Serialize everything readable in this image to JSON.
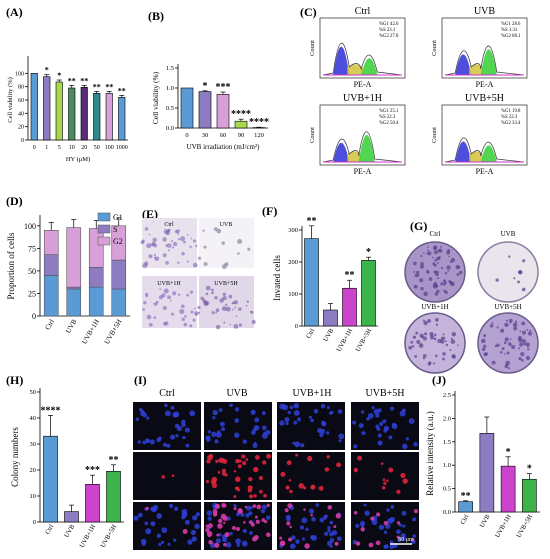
{
  "panel_labels": [
    "(A)",
    "(B)",
    "(C)",
    "(D)",
    "(E)",
    "(F)",
    "(G)",
    "(H)",
    "(I)",
    "(J)"
  ],
  "colors": {
    "blue": "#5b9bd5",
    "purple": "#8e7cc3",
    "lime": "#a8d84e",
    "green_dark": "#4e8a5f",
    "teal": "#2e8b8b",
    "pink": "#d8a0d8",
    "magenta": "#cc44cc",
    "red": "#e53935",
    "green": "#3cb44b",
    "dark_purple": "#5a2d7a",
    "stain": "#8a6db8"
  },
  "chart_data": [
    {
      "panel": "A",
      "type": "bar",
      "categories": [
        "0",
        "1",
        "5",
        "10",
        "20",
        "50",
        "100",
        "1000"
      ],
      "values": [
        100,
        95,
        87,
        78,
        79,
        70,
        70,
        64
      ],
      "errors": [
        0,
        3,
        3,
        4,
        3,
        3,
        3,
        3
      ],
      "significance": [
        "",
        "*",
        "*",
        "**",
        "**",
        "**",
        "**",
        "**"
      ],
      "xlabel": "HY (μM)",
      "ylabel": "Cell viability (%)",
      "yticks": [
        0,
        20,
        40,
        60,
        80,
        100
      ],
      "ylim": [
        0,
        120
      ]
    },
    {
      "panel": "B",
      "type": "bar",
      "categories": [
        "0",
        "30",
        "60",
        "90",
        "120"
      ],
      "values": [
        1.0,
        0.91,
        0.84,
        0.17,
        0.01
      ],
      "errors": [
        0,
        0.02,
        0.06,
        0.05,
        0.01
      ],
      "significance": [
        "",
        "*",
        "***",
        "****",
        "****"
      ],
      "xlabel": "UVB irradiation (mJ/cm²)",
      "ylabel": "Cell viability (%)",
      "yticks": [
        0.0,
        0.5,
        1.0,
        1.5
      ],
      "ylim": [
        0,
        1.5
      ]
    },
    {
      "panel": "C",
      "type": "histogram",
      "xlabel": "PE-A",
      "ylabel": "Count",
      "plots": [
        {
          "title": "Ctrl",
          "stats": [
            "%G1 42.6",
            "%S 23.1",
            "%G2 27.8"
          ]
        },
        {
          "title": "UVB",
          "stats": [
            "%G1 28.6",
            "%S 1.31",
            "%G2 68.1"
          ]
        },
        {
          "title": "UVB+1H",
          "stats": [
            "%G1 25.1",
            "%S 22.3",
            "%G2 50.4"
          ]
        },
        {
          "title": "UVB+5H",
          "stats": [
            "%G1 19.8",
            "%S 22.3",
            "%G2 33.4"
          ]
        }
      ]
    },
    {
      "panel": "D",
      "type": "bar",
      "categories": [
        "Ctrl",
        "UVB",
        "UVB+1H",
        "UVB+5H"
      ],
      "series": [
        {
          "name": "G1",
          "values": [
            45,
            30,
            32,
            30
          ]
        },
        {
          "name": "S",
          "values": [
            23,
            2,
            22,
            32
          ]
        },
        {
          "name": "G2",
          "values": [
            27,
            66,
            43,
            38
          ]
        }
      ],
      "ylabel": "Proportion of cells",
      "yticks": [
        0,
        25,
        50,
        75,
        100
      ],
      "ylim": [
        0,
        112
      ]
    },
    {
      "panel": "F",
      "type": "bar",
      "categories": [
        "Ctrl",
        "UVB",
        "UVB+1H",
        "UVB+5H"
      ],
      "values": [
        273,
        50,
        118,
        205
      ],
      "errors": [
        40,
        20,
        25,
        10
      ],
      "significance": [
        "**",
        "",
        "**",
        "*"
      ],
      "ylabel": "Invated cells",
      "yticks": [
        0,
        100,
        200,
        300
      ],
      "ylim": [
        0,
        300
      ]
    },
    {
      "panel": "H",
      "type": "bar",
      "categories": [
        "Ctrl",
        "UVB",
        "UVB+1H",
        "UVB+5H"
      ],
      "values": [
        33,
        4,
        14.5,
        19.5
      ],
      "errors": [
        8,
        2.5,
        3.5,
        2.5
      ],
      "significance": [
        "****",
        "",
        "***",
        "**"
      ],
      "ylabel": "Colony numbers",
      "yticks": [
        0,
        10,
        20,
        30,
        40,
        50
      ],
      "ylim": [
        0,
        50
      ]
    },
    {
      "panel": "J",
      "type": "bar",
      "categories": [
        "Ctrl",
        "UVB",
        "UVB+1H",
        "UVB+5H"
      ],
      "values": [
        0.22,
        1.68,
        0.98,
        0.7
      ],
      "errors": [
        0.02,
        0.35,
        0.2,
        0.12
      ],
      "significance": [
        "**",
        "",
        "*",
        "*"
      ],
      "ylabel": "Relative intensity (a.u.)",
      "yticks": [
        0.0,
        0.5,
        1.0,
        1.5,
        2.0,
        2.5
      ],
      "ylim": [
        0,
        2.5
      ]
    }
  ],
  "images": {
    "E_labels": [
      "Ctrl",
      "UVB",
      "UVB+1H",
      "UVB+5H"
    ],
    "G_labels": [
      "Ctrl",
      "UVB",
      "UVB+1H",
      "UVB+5H"
    ],
    "I_labels": [
      "Ctrl",
      "UVB",
      "UVB+1H",
      "UVB+5H"
    ],
    "I_scale_bar": "80 μm"
  }
}
